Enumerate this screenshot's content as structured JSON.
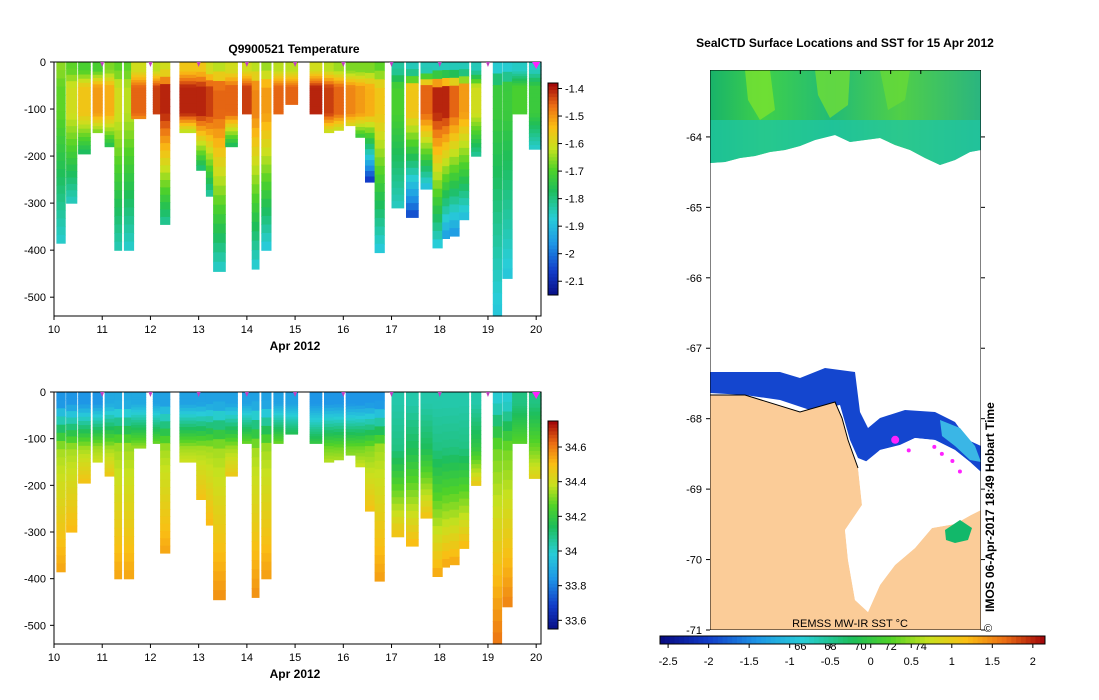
{
  "chart_data": [
    {
      "type": "heatmap",
      "title": "Q9900521  Temperature",
      "xlabel": "Apr 2012",
      "ylabel": "",
      "x_ticks": [
        "10",
        "11",
        "12",
        "13",
        "14",
        "15",
        "16",
        "17",
        "18",
        "19",
        "20"
      ],
      "xlim": [
        10,
        20.1
      ],
      "y_ticks": [
        "0",
        "-100",
        "-200",
        "-300",
        "-400",
        "-500"
      ],
      "ylim": [
        -540,
        0
      ],
      "profile_markers": [
        11,
        12,
        13,
        14,
        15,
        16,
        17,
        18,
        19,
        20
      ],
      "colorbar": {
        "ticks": [
          "-1.4",
          "-1.5",
          "-1.6",
          "-1.7",
          "-1.8",
          "-1.9",
          "-2",
          "-2.1"
        ],
        "range": [
          -2.15,
          -1.38
        ]
      },
      "profiles": [
        {
          "t": 10.05,
          "w": 0.18,
          "d": 385,
          "mid": -1.68,
          "deep": -1.86,
          "surf": -1.65
        },
        {
          "t": 10.25,
          "w": 0.22,
          "d": 300,
          "mid": -1.6,
          "deep": -1.85,
          "surf": -1.68
        },
        {
          "t": 10.5,
          "w": 0.25,
          "d": 195,
          "mid": -1.55,
          "deep": -1.78,
          "surf": -1.7
        },
        {
          "t": 10.8,
          "w": 0.2,
          "d": 150,
          "mid": -1.5,
          "deep": -1.75,
          "surf": -1.7
        },
        {
          "t": 11.05,
          "w": 0.2,
          "d": 180,
          "mid": -1.52,
          "deep": -1.76,
          "surf": -1.66
        },
        {
          "t": 11.25,
          "w": 0.15,
          "d": 400,
          "mid": -1.6,
          "deep": -1.84,
          "surf": -1.68
        },
        {
          "t": 11.45,
          "w": 0.2,
          "d": 400,
          "mid": -1.62,
          "deep": -1.86,
          "surf": -1.68
        },
        {
          "t": 11.6,
          "w": 0.3,
          "d": 120,
          "mid": -1.45,
          "deep": -1.7,
          "surf": -1.6
        },
        {
          "t": 12.05,
          "w": 0.15,
          "d": 110,
          "mid": -1.42,
          "deep": -1.68,
          "surf": -1.62
        },
        {
          "t": 12.2,
          "w": 0.2,
          "d": 345,
          "mid": -1.4,
          "deep": -1.82,
          "surf": -1.6
        },
        {
          "t": 12.6,
          "w": 0.35,
          "d": 150,
          "mid": -1.4,
          "deep": -1.75,
          "surf": -1.55
        },
        {
          "t": 12.95,
          "w": 0.2,
          "d": 230,
          "mid": -1.4,
          "deep": -1.8,
          "surf": -1.55
        },
        {
          "t": 13.15,
          "w": 0.2,
          "d": 285,
          "mid": -1.42,
          "deep": -1.83,
          "surf": -1.6
        },
        {
          "t": 13.3,
          "w": 0.25,
          "d": 445,
          "mid": -1.45,
          "deep": -1.86,
          "surf": -1.62
        },
        {
          "t": 13.55,
          "w": 0.25,
          "d": 180,
          "mid": -1.45,
          "deep": -1.78,
          "surf": -1.6
        },
        {
          "t": 13.9,
          "w": 0.2,
          "d": 110,
          "mid": -1.42,
          "deep": -1.7,
          "surf": -1.6
        },
        {
          "t": 14.1,
          "w": 0.15,
          "d": 440,
          "mid": -1.48,
          "deep": -1.87,
          "surf": -1.62
        },
        {
          "t": 14.3,
          "w": 0.2,
          "d": 400,
          "mid": -1.5,
          "deep": -1.88,
          "surf": -1.64
        },
        {
          "t": 14.55,
          "w": 0.2,
          "d": 110,
          "mid": -1.45,
          "deep": -1.72,
          "surf": -1.62
        },
        {
          "t": 14.8,
          "w": 0.25,
          "d": 90,
          "mid": -1.45,
          "deep": -1.7,
          "surf": -1.62
        },
        {
          "t": 15.3,
          "w": 0.25,
          "d": 110,
          "mid": -1.4,
          "deep": -1.7,
          "surf": -1.6
        },
        {
          "t": 15.6,
          "w": 0.2,
          "d": 150,
          "mid": -1.42,
          "deep": -1.72,
          "surf": -1.62
        },
        {
          "t": 15.8,
          "w": 0.2,
          "d": 145,
          "mid": -1.45,
          "deep": -1.74,
          "surf": -1.64
        },
        {
          "t": 16.05,
          "w": 0.2,
          "d": 135,
          "mid": -1.48,
          "deep": -1.76,
          "surf": -1.66
        },
        {
          "t": 16.25,
          "w": 0.2,
          "d": 160,
          "mid": -1.5,
          "deep": -1.78,
          "surf": -1.66
        },
        {
          "t": 16.45,
          "w": 0.2,
          "d": 255,
          "mid": -1.52,
          "deep": -2.08,
          "surf": -1.66
        },
        {
          "t": 16.65,
          "w": 0.2,
          "d": 405,
          "mid": -1.55,
          "deep": -1.88,
          "surf": -1.68
        },
        {
          "t": 17.0,
          "w": 0.25,
          "d": 310,
          "mid": -1.7,
          "deep": -1.85,
          "surf": -1.82
        },
        {
          "t": 17.3,
          "w": 0.25,
          "d": 330,
          "mid": -1.55,
          "deep": -2.05,
          "surf": -1.84
        },
        {
          "t": 17.6,
          "w": 0.25,
          "d": 270,
          "mid": -1.45,
          "deep": -1.9,
          "surf": -1.84
        },
        {
          "t": 17.85,
          "w": 0.2,
          "d": 395,
          "mid": -1.4,
          "deep": -1.88,
          "surf": -1.84
        },
        {
          "t": 18.05,
          "w": 0.15,
          "d": 375,
          "mid": -1.4,
          "deep": -1.95,
          "surf": -1.84
        },
        {
          "t": 18.2,
          "w": 0.2,
          "d": 370,
          "mid": -1.45,
          "deep": -1.96,
          "surf": -1.84
        },
        {
          "t": 18.4,
          "w": 0.2,
          "d": 335,
          "mid": -1.5,
          "deep": -1.9,
          "surf": -1.84
        },
        {
          "t": 18.65,
          "w": 0.2,
          "d": 200,
          "mid": -1.6,
          "deep": -1.82,
          "surf": -1.84
        },
        {
          "t": 19.1,
          "w": 0.18,
          "d": 540,
          "mid": -1.72,
          "deep": -1.88,
          "surf": -1.86
        },
        {
          "t": 19.3,
          "w": 0.2,
          "d": 460,
          "mid": -1.72,
          "deep": -1.88,
          "surf": -1.86
        },
        {
          "t": 19.5,
          "w": 0.3,
          "d": 110,
          "mid": -1.7,
          "deep": -1.86,
          "surf": -1.85
        },
        {
          "t": 19.85,
          "w": 0.25,
          "d": 185,
          "mid": -1.72,
          "deep": -1.86,
          "surf": -1.85
        }
      ]
    },
    {
      "type": "heatmap",
      "title": "",
      "xlabel": "Apr 2012",
      "ylabel": "",
      "x_ticks": [
        "10",
        "11",
        "12",
        "13",
        "14",
        "15",
        "16",
        "17",
        "18",
        "19",
        "20"
      ],
      "xlim": [
        10,
        20.1
      ],
      "y_ticks": [
        "0",
        "-100",
        "-200",
        "-300",
        "-400",
        "-500"
      ],
      "ylim": [
        -540,
        0
      ],
      "profile_markers": [
        11,
        12,
        13,
        14,
        15,
        16,
        17,
        18,
        19,
        20
      ],
      "colorbar": {
        "ticks": [
          "34.6",
          "34.4",
          "34.2",
          "34",
          "33.8",
          "33.6"
        ],
        "range": [
          33.55,
          34.75
        ]
      },
      "profiles": [
        {
          "t": 10.05,
          "w": 0.18,
          "d": 385,
          "surf": 33.85,
          "mid": 34.35,
          "deep": 34.55
        },
        {
          "t": 10.25,
          "w": 0.22,
          "d": 300,
          "surf": 33.85,
          "mid": 34.35,
          "deep": 34.52
        },
        {
          "t": 10.5,
          "w": 0.25,
          "d": 195,
          "surf": 33.85,
          "mid": 34.35,
          "deep": 34.5
        },
        {
          "t": 10.8,
          "w": 0.2,
          "d": 150,
          "surf": 33.85,
          "mid": 34.35,
          "deep": 34.45
        },
        {
          "t": 11.05,
          "w": 0.2,
          "d": 180,
          "surf": 33.9,
          "mid": 34.35,
          "deep": 34.48
        },
        {
          "t": 11.25,
          "w": 0.15,
          "d": 400,
          "surf": 33.9,
          "mid": 34.35,
          "deep": 34.55
        },
        {
          "t": 11.45,
          "w": 0.2,
          "d": 400,
          "surf": 33.9,
          "mid": 34.35,
          "deep": 34.55
        },
        {
          "t": 11.6,
          "w": 0.3,
          "d": 120,
          "surf": 33.9,
          "mid": 34.35,
          "deep": 34.4
        },
        {
          "t": 12.05,
          "w": 0.15,
          "d": 110,
          "surf": 33.88,
          "mid": 34.35,
          "deep": 34.4
        },
        {
          "t": 12.2,
          "w": 0.2,
          "d": 345,
          "surf": 33.88,
          "mid": 34.35,
          "deep": 34.55
        },
        {
          "t": 12.6,
          "w": 0.35,
          "d": 150,
          "surf": 33.88,
          "mid": 34.35,
          "deep": 34.45
        },
        {
          "t": 12.95,
          "w": 0.2,
          "d": 230,
          "surf": 33.88,
          "mid": 34.35,
          "deep": 34.5
        },
        {
          "t": 13.15,
          "w": 0.2,
          "d": 285,
          "surf": 33.88,
          "mid": 34.35,
          "deep": 34.52
        },
        {
          "t": 13.3,
          "w": 0.25,
          "d": 445,
          "surf": 33.88,
          "mid": 34.35,
          "deep": 34.58
        },
        {
          "t": 13.55,
          "w": 0.25,
          "d": 180,
          "surf": 33.88,
          "mid": 34.35,
          "deep": 34.48
        },
        {
          "t": 13.9,
          "w": 0.2,
          "d": 110,
          "surf": 33.88,
          "mid": 34.35,
          "deep": 34.4
        },
        {
          "t": 14.1,
          "w": 0.15,
          "d": 440,
          "surf": 33.88,
          "mid": 34.35,
          "deep": 34.58
        },
        {
          "t": 14.3,
          "w": 0.2,
          "d": 400,
          "surf": 33.88,
          "mid": 34.35,
          "deep": 34.56
        },
        {
          "t": 14.55,
          "w": 0.2,
          "d": 110,
          "surf": 33.88,
          "mid": 34.35,
          "deep": 34.4
        },
        {
          "t": 14.8,
          "w": 0.25,
          "d": 90,
          "surf": 33.88,
          "mid": 34.3,
          "deep": 34.38
        },
        {
          "t": 15.3,
          "w": 0.25,
          "d": 110,
          "surf": 33.85,
          "mid": 34.25,
          "deep": 34.4
        },
        {
          "t": 15.6,
          "w": 0.2,
          "d": 150,
          "surf": 33.85,
          "mid": 34.3,
          "deep": 34.45
        },
        {
          "t": 15.8,
          "w": 0.2,
          "d": 145,
          "surf": 33.85,
          "mid": 34.3,
          "deep": 34.45
        },
        {
          "t": 16.05,
          "w": 0.2,
          "d": 135,
          "surf": 33.85,
          "mid": 34.3,
          "deep": 34.42
        },
        {
          "t": 16.25,
          "w": 0.2,
          "d": 160,
          "surf": 33.85,
          "mid": 34.3,
          "deep": 34.45
        },
        {
          "t": 16.45,
          "w": 0.2,
          "d": 255,
          "surf": 33.85,
          "mid": 34.32,
          "deep": 34.5
        },
        {
          "t": 16.65,
          "w": 0.2,
          "d": 405,
          "surf": 33.85,
          "mid": 34.35,
          "deep": 34.56
        },
        {
          "t": 17.0,
          "w": 0.25,
          "d": 310,
          "surf": 34.05,
          "mid": 34.1,
          "deep": 34.5
        },
        {
          "t": 17.3,
          "w": 0.25,
          "d": 330,
          "surf": 34.05,
          "mid": 34.15,
          "deep": 34.52
        },
        {
          "t": 17.6,
          "w": 0.25,
          "d": 270,
          "surf": 34.05,
          "mid": 34.15,
          "deep": 34.5
        },
        {
          "t": 17.85,
          "w": 0.2,
          "d": 395,
          "surf": 34.05,
          "mid": 34.1,
          "deep": 34.55
        },
        {
          "t": 18.05,
          "w": 0.15,
          "d": 375,
          "surf": 34.05,
          "mid": 34.1,
          "deep": 34.55
        },
        {
          "t": 18.2,
          "w": 0.2,
          "d": 370,
          "surf": 34.05,
          "mid": 34.1,
          "deep": 34.55
        },
        {
          "t": 18.4,
          "w": 0.2,
          "d": 335,
          "surf": 34.05,
          "mid": 34.1,
          "deep": 34.52
        },
        {
          "t": 18.65,
          "w": 0.2,
          "d": 200,
          "surf": 34.05,
          "mid": 34.2,
          "deep": 34.48
        },
        {
          "t": 19.1,
          "w": 0.18,
          "d": 540,
          "surf": 34.0,
          "mid": 34.3,
          "deep": 34.62
        },
        {
          "t": 19.3,
          "w": 0.2,
          "d": 460,
          "surf": 34.0,
          "mid": 34.3,
          "deep": 34.6
        },
        {
          "t": 19.5,
          "w": 0.3,
          "d": 110,
          "surf": 34.1,
          "mid": 34.3,
          "deep": 34.4
        },
        {
          "t": 19.85,
          "w": 0.25,
          "d": 185,
          "surf": 34.1,
          "mid": 34.3,
          "deep": 34.45
        }
      ]
    },
    {
      "type": "heatmap",
      "title": "SealCTD Surface Locations and SST for 15 Apr 2012",
      "source_label": "REMSS MW-IR SST °C",
      "y_ticks": [
        "-64",
        "-65",
        "-66",
        "-67",
        "-68",
        "-69",
        "-70",
        "-71"
      ],
      "ylim": [
        -71,
        -63.05
      ],
      "xlim": [
        60,
        78
      ],
      "x_ticks_top": [
        "66",
        "68",
        "70",
        "72",
        "74"
      ],
      "colorbar": {
        "ticks": [
          "-2.5",
          "-2",
          "-1.5",
          "-1",
          "-0.5",
          "0",
          "0.5",
          "1",
          "1.5",
          "2"
        ],
        "range": [
          -2.6,
          2.15
        ]
      },
      "side_label": "IMOS 06-Apr-2017 18:49 Hobart Time",
      "copyright": "©",
      "seal_locations": [
        {
          "lon": 72.3,
          "lat": -68.3
        },
        {
          "lon": 73.2,
          "lat": -68.45
        },
        {
          "lon": 74.9,
          "lat": -68.4
        },
        {
          "lon": 75.4,
          "lat": -68.5
        },
        {
          "lon": 76.1,
          "lat": -68.6
        },
        {
          "lon": 76.6,
          "lat": -68.75
        }
      ]
    }
  ]
}
